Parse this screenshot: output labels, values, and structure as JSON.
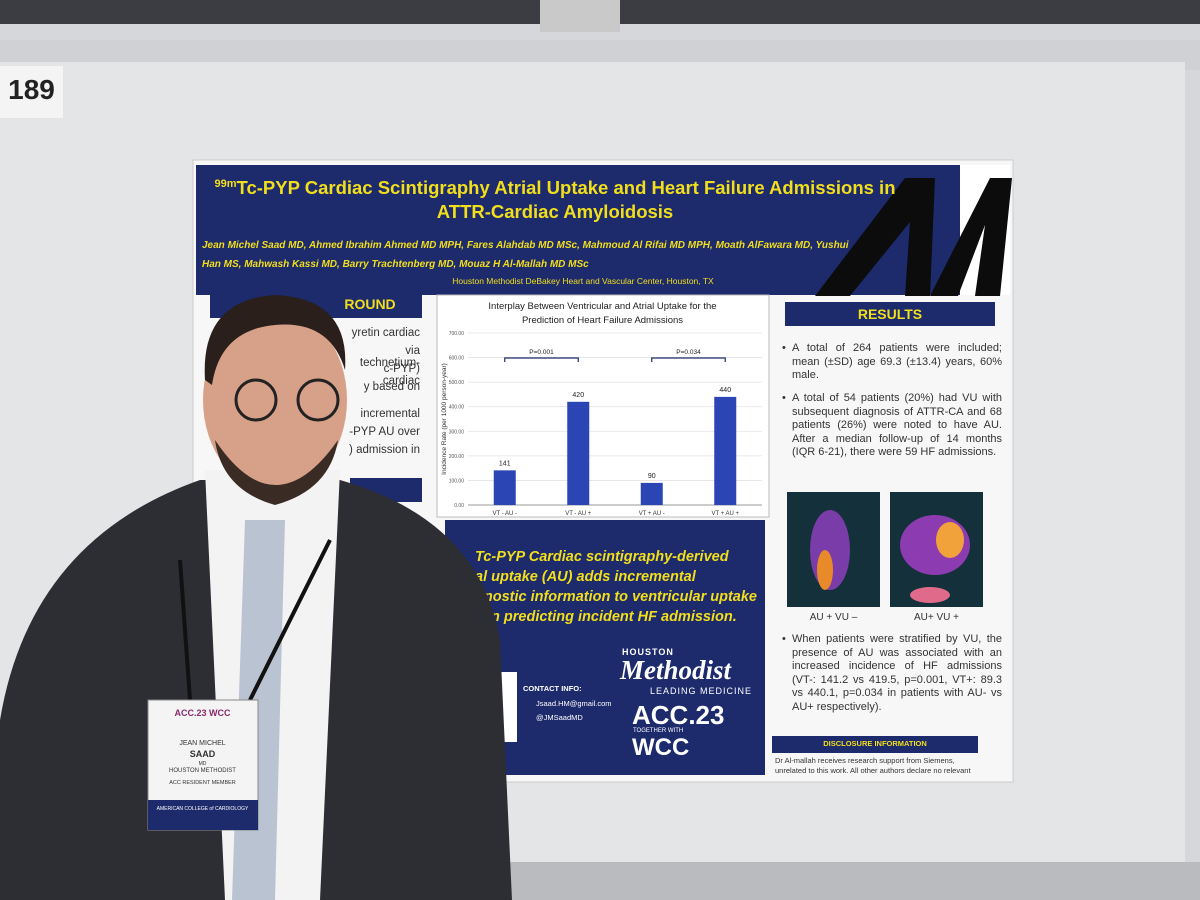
{
  "board_number": "189",
  "poster": {
    "title_superscript": "99m",
    "title": "Tc-PYP Cardiac Scintigraphy Atrial Uptake and Heart Failure Admissions in ATTR-Cardiac Amyloidosis",
    "authors": "Jean Michel Saad MD, Ahmed Ibrahim Ahmed MD MPH, Fares Alahdab MD MSc, Mahmoud Al Rifai MD MPH, Moath AlFawara MD, Yushui Han MS, Mahwash Kassi MD, Barry Trachtenberg MD, Mouaz H Al-Mallah MD MSc",
    "affiliation": "Houston Methodist DeBakey Heart and Vascular Center, Houston, TX",
    "background": {
      "heading": "ROUND",
      "lines": [
        "yretin cardiac",
        "via technetium-",
        "c-PYP) cardiac",
        "y based on",
        "incremental",
        "-PYP AU over",
        ") admission in"
      ]
    },
    "conclusion": [
      "Tc-PYP Cardiac scintigraphy-derived",
      "al uptake (AU) adds incremental",
      "gnostic information to ventricular uptake",
      "in predicting incident HF admission."
    ],
    "contact": {
      "heading": "CONTACT INFO:",
      "email": "Jsaad.HM@gmail.com",
      "twitter": "@JMSaadMD"
    },
    "logos": {
      "houston": "HOUSTON",
      "methodist": "Methodist",
      "leading": "LEADING MEDICINE",
      "acc": "ACC.23",
      "together": "TOGETHER WITH",
      "wcc": "WCC"
    },
    "results": {
      "heading": "RESULTS",
      "bullets": [
        "A total of 264 patients were included; mean (±SD) age 69.3 (±13.4) years, 60% male.",
        "A total of 54 patients (20%) had VU with subsequent diagnosis of ATTR-CA and 68 patients (26%) were noted to have AU. After a median follow-up of 14 months (IQR 6-21), there were 59 HF admissions.",
        "When patients were stratified by VU, the presence of AU was associated with an increased incidence of HF admissions (VT-: 141.2 vs 419.5, p=0.001, VT+: 89.3 vs 440.1, p=0.034 in patients with AU- vs AU+ respectively)."
      ],
      "image_labels": [
        "AU + VU –",
        "AU+ VU +"
      ]
    },
    "disclosure": {
      "heading": "DISCLOSURE INFORMATION",
      "text": "Dr Al-mallah receives research support from Siemens, unrelated to this work. All other authors declare no relevant"
    }
  },
  "chart_data": {
    "type": "bar",
    "title": "Interplay Between Ventricular and Atrial Uptake for the Prediction of Heart Failure Admissions",
    "y_label": "Incidence Rate (per 1000 person-year)",
    "categories": [
      "VT - AU -",
      "VT - AU +",
      "VT + AU -",
      "VT + AU +"
    ],
    "values": [
      141,
      420,
      90,
      440
    ],
    "color": "#2b45b5",
    "ylim": [
      0,
      700
    ],
    "yticks": [
      {
        "value": 0,
        "label": "0.00"
      },
      {
        "value": 100,
        "label": "100.00"
      },
      {
        "value": 200,
        "label": "200.00"
      },
      {
        "value": 300,
        "label": "300.00"
      },
      {
        "value": 400,
        "label": "400.00"
      },
      {
        "value": 500,
        "label": "500.00"
      },
      {
        "value": 600,
        "label": "600.00"
      },
      {
        "value": 700,
        "label": "700.00"
      }
    ],
    "grid": true,
    "annotations": [
      "P=0.001",
      "P=0.034"
    ]
  },
  "badge": {
    "event": "ACC.23 WCC",
    "first_name": "JEAN MICHEL",
    "last_name": "SAAD",
    "degree": "MD",
    "org": "HOUSTON METHODIST",
    "member": "ACC RESIDENT MEMBER",
    "college": "AMERICAN COLLEGE of CARDIOLOGY"
  }
}
